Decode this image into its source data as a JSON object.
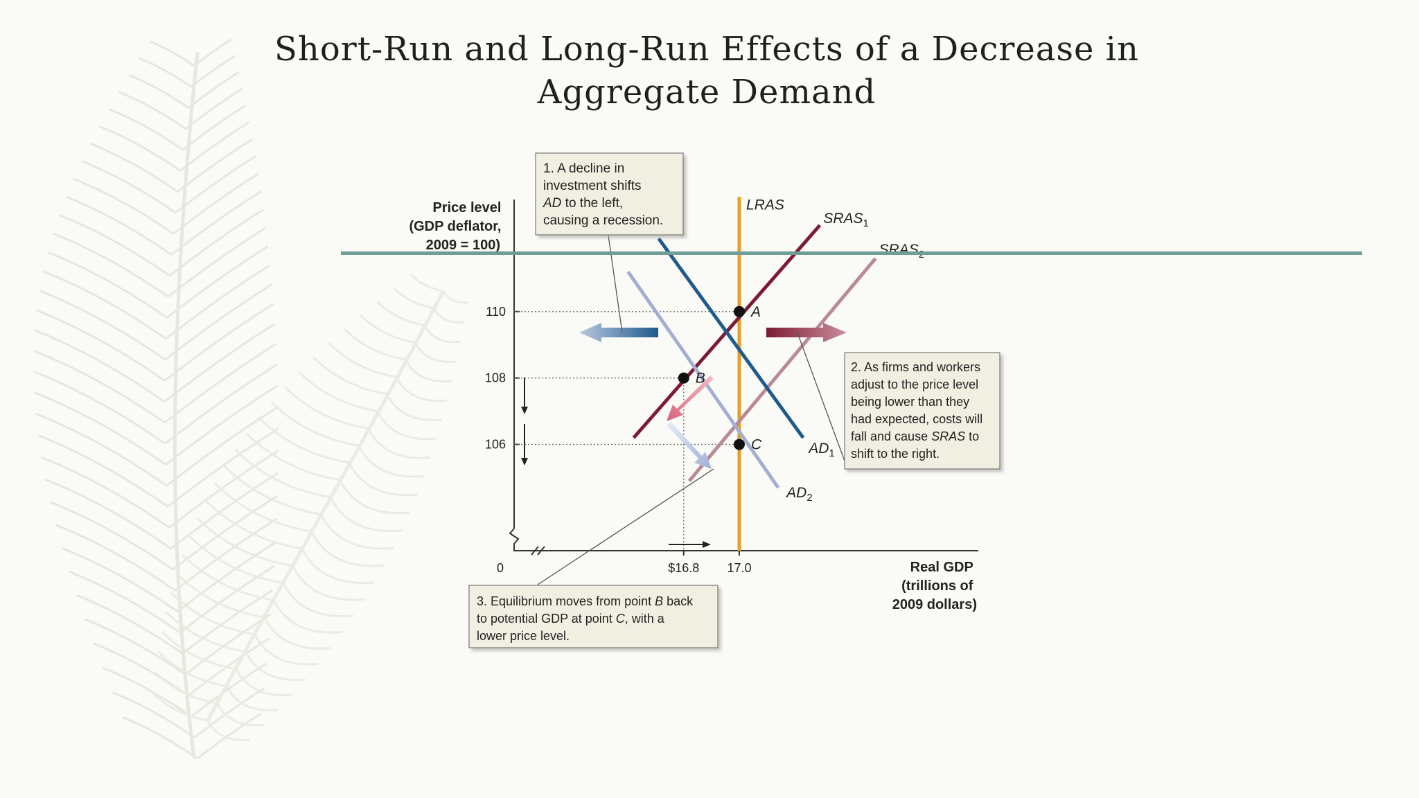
{
  "slide": {
    "title_line1": "Short-Run and Long-Run Effects of a Decrease in",
    "title_line2": "Aggregate Demand",
    "accent_color": "#6f9e97",
    "background_decoration": "feather-illustration"
  },
  "chart_data": {
    "type": "line",
    "ylabel_lines": [
      "Price level",
      "(GDP deflator,",
      "2009 = 100)"
    ],
    "xlabel_lines": [
      "Real GDP",
      "(trillions of",
      "2009 dollars)"
    ],
    "y_ticks": [
      110,
      108,
      106
    ],
    "x_ticks": [
      {
        "value": 16.8,
        "label": "$16.8"
      },
      {
        "value": 17.0,
        "label": "17.0"
      }
    ],
    "origin_label": "0",
    "xlim": [
      16.19,
      17.86
    ],
    "ylim": [
      102.8,
      113.5
    ],
    "axis_break": true,
    "series": [
      {
        "name": "LRAS",
        "sub": "",
        "color": "#e3a12b",
        "width": 5,
        "points": [
          [
            17.0,
            102.8
          ],
          [
            17.0,
            113.45
          ]
        ]
      },
      {
        "name": "SRAS",
        "sub": "1",
        "color": "#7d1b34",
        "width": 5,
        "points": [
          [
            16.62,
            106.2
          ],
          [
            17.29,
            112.6
          ]
        ]
      },
      {
        "name": "SRAS",
        "sub": "2",
        "color": "#b98a95",
        "width": 5,
        "points": [
          [
            16.82,
            104.9
          ],
          [
            17.49,
            111.6
          ]
        ]
      },
      {
        "name": "AD",
        "sub": "1",
        "color": "#1f5a8c",
        "width": 5,
        "points": [
          [
            16.71,
            112.2
          ],
          [
            17.23,
            106.2
          ]
        ]
      },
      {
        "name": "AD",
        "sub": "2",
        "color": "#a3aed0",
        "width": 5,
        "points": [
          [
            16.6,
            111.2
          ],
          [
            17.14,
            104.7
          ]
        ]
      }
    ],
    "points": [
      {
        "label": "A",
        "x": 17.0,
        "y": 110
      },
      {
        "label": "B",
        "x": 16.8,
        "y": 108
      },
      {
        "label": "C",
        "x": 17.0,
        "y": 106
      }
    ],
    "annotations": [
      {
        "id": "note-1",
        "lines": [
          [
            "1. A decline in",
            ""
          ],
          [
            "investment shifts",
            ""
          ],
          [
            "",
            "AD"
          ],
          [
            "to the left,",
            ""
          ],
          [
            "causing a recession.",
            ""
          ]
        ]
      },
      {
        "id": "note-2",
        "text": ""
      },
      {
        "id": "note-3",
        "text": ""
      }
    ],
    "notes": {
      "note1": {
        "line1": "1. A decline in",
        "line2": "investment shifts",
        "line3_italic": "AD",
        "line3_rest": " to the left,",
        "line4": "causing a recession."
      },
      "note2": {
        "line1": "2. As firms and workers",
        "line2": "adjust to the price level",
        "line3": "being lower than they",
        "line4": "had expected, costs will",
        "line5_pre": "fall and cause ",
        "line5_italic": "SRAS",
        "line5_post": " to",
        "line6": "shift to the right."
      },
      "note3": {
        "line1_pre": "3. Equilibrium moves from point ",
        "line1_italic": "B",
        "line1_post": " back",
        "line2_pre": "to potential GDP at point ",
        "line2_italic": "C",
        "line2_post": ", with a",
        "line3": "lower price level."
      }
    }
  }
}
